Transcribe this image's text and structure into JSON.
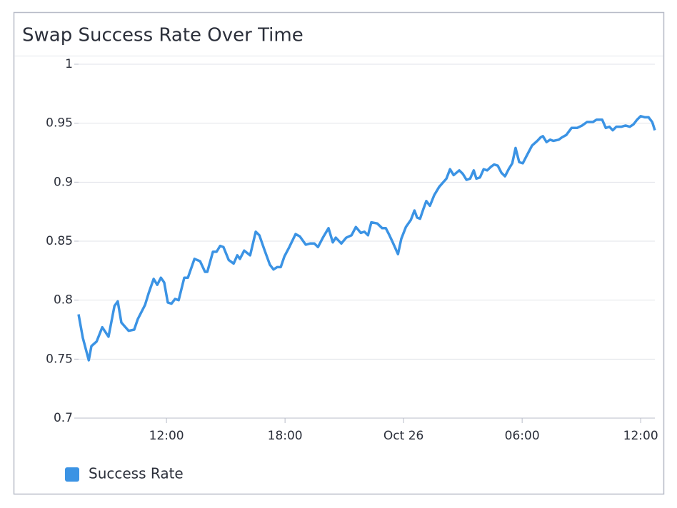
{
  "chart_data": {
    "type": "line",
    "title": "Swap Success Rate Over Time",
    "x": [
      "Oct 25 07:33",
      "Oct 25 07:46",
      "Oct 25 08:04",
      "Oct 25 08:12",
      "Oct 25 08:28",
      "Oct 25 08:45",
      "Oct 25 09:04",
      "Oct 25 09:22",
      "Oct 25 09:32",
      "Oct 25 09:43",
      "Oct 25 10:05",
      "Oct 25 10:22",
      "Oct 25 10:33",
      "Oct 25 10:55",
      "Oct 25 11:06",
      "Oct 25 11:21",
      "Oct 25 11:32",
      "Oct 25 11:43",
      "Oct 25 11:53",
      "Oct 25 12:04",
      "Oct 25 12:15",
      "Oct 25 12:26",
      "Oct 25 12:37",
      "Oct 25 12:54",
      "Oct 25 13:05",
      "Oct 25 13:25",
      "Oct 25 13:42",
      "Oct 25 13:57",
      "Oct 25 14:04",
      "Oct 25 14:21",
      "Oct 25 14:32",
      "Oct 25 14:43",
      "Oct 25 14:53",
      "Oct 25 15:09",
      "Oct 25 15:24",
      "Oct 25 15:35",
      "Oct 25 15:43",
      "Oct 25 15:56",
      "Oct 25 16:14",
      "Oct 25 16:31",
      "Oct 25 16:42",
      "Oct 25 16:57",
      "Oct 25 17:14",
      "Oct 25 17:25",
      "Oct 25 17:36",
      "Oct 25 17:47",
      "Oct 25 17:58",
      "Oct 25 18:13",
      "Oct 25 18:32",
      "Oct 25 18:45",
      "Oct 25 19:03",
      "Oct 25 19:16",
      "Oct 25 19:29",
      "Oct 25 19:40",
      "Oct 25 19:55",
      "Oct 25 20:12",
      "Oct 25 20:25",
      "Oct 25 20:34",
      "Oct 25 20:51",
      "Oct 25 21:06",
      "Oct 25 21:22",
      "Oct 25 21:35",
      "Oct 25 21:50",
      "Oct 25 22:01",
      "Oct 25 22:12",
      "Oct 25 22:22",
      "Oct 25 22:40",
      "Oct 25 22:55",
      "Oct 25 23:06",
      "Oct 25 23:17",
      "Oct 25 23:27",
      "Oct 25 23:43",
      "Oct 25 23:53",
      "Oct 26 00:07",
      "Oct 26 00:22",
      "Oct 26 00:33",
      "Oct 26 00:41",
      "Oct 26 00:50",
      "Oct 26 01:01",
      "Oct 26 01:09",
      "Oct 26 01:20",
      "Oct 26 01:33",
      "Oct 26 01:48",
      "Oct 26 02:10",
      "Oct 26 02:21",
      "Oct 26 02:32",
      "Oct 26 02:49",
      "Oct 26 03:00",
      "Oct 26 03:11",
      "Oct 26 03:22",
      "Oct 26 03:33",
      "Oct 26 03:41",
      "Oct 26 03:52",
      "Oct 26 04:03",
      "Oct 26 04:14",
      "Oct 26 04:25",
      "Oct 26 04:35",
      "Oct 26 04:46",
      "Oct 26 04:57",
      "Oct 26 05:08",
      "Oct 26 05:19",
      "Oct 26 05:30",
      "Oct 26 05:40",
      "Oct 26 05:51",
      "Oct 26 06:02",
      "Oct 26 06:13",
      "Oct 26 06:30",
      "Oct 26 06:46",
      "Oct 26 06:56",
      "Oct 26 07:03",
      "Oct 26 07:14",
      "Oct 26 07:25",
      "Oct 26 07:35",
      "Oct 26 07:51",
      "Oct 26 08:01",
      "Oct 26 08:14",
      "Oct 26 08:30",
      "Oct 26 08:47",
      "Oct 26 09:02",
      "Oct 26 09:17",
      "Oct 26 09:35",
      "Oct 26 09:46",
      "Oct 26 10:03",
      "Oct 26 10:14",
      "Oct 26 10:25",
      "Oct 26 10:35",
      "Oct 26 10:46",
      "Oct 26 11:01",
      "Oct 26 11:14",
      "Oct 26 11:27",
      "Oct 26 11:38",
      "Oct 26 11:49",
      "Oct 26 12:00",
      "Oct 26 12:13",
      "Oct 26 12:24",
      "Oct 26 12:35",
      "Oct 26 12:43"
    ],
    "series": [
      {
        "name": "Success Rate",
        "color": "#3b93e4",
        "values": [
          0.788,
          0.768,
          0.749,
          0.761,
          0.765,
          0.777,
          0.769,
          0.795,
          0.799,
          0.781,
          0.774,
          0.775,
          0.784,
          0.796,
          0.806,
          0.818,
          0.813,
          0.819,
          0.815,
          0.798,
          0.797,
          0.801,
          0.8,
          0.819,
          0.819,
          0.835,
          0.833,
          0.824,
          0.824,
          0.841,
          0.841,
          0.846,
          0.845,
          0.834,
          0.831,
          0.838,
          0.835,
          0.842,
          0.838,
          0.858,
          0.855,
          0.843,
          0.83,
          0.826,
          0.828,
          0.828,
          0.837,
          0.845,
          0.856,
          0.854,
          0.847,
          0.848,
          0.848,
          0.845,
          0.853,
          0.861,
          0.849,
          0.853,
          0.848,
          0.853,
          0.855,
          0.862,
          0.857,
          0.858,
          0.855,
          0.866,
          0.865,
          0.861,
          0.861,
          0.855,
          0.849,
          0.839,
          0.852,
          0.862,
          0.868,
          0.876,
          0.87,
          0.869,
          0.878,
          0.884,
          0.88,
          0.889,
          0.896,
          0.903,
          0.911,
          0.906,
          0.91,
          0.907,
          0.902,
          0.903,
          0.91,
          0.903,
          0.904,
          0.911,
          0.91,
          0.913,
          0.915,
          0.914,
          0.908,
          0.905,
          0.911,
          0.916,
          0.929,
          0.917,
          0.916,
          0.922,
          0.931,
          0.935,
          0.938,
          0.939,
          0.934,
          0.936,
          0.935,
          0.936,
          0.938,
          0.94,
          0.946,
          0.946,
          0.948,
          0.951,
          0.951,
          0.953,
          0.953,
          0.946,
          0.947,
          0.944,
          0.947,
          0.947,
          0.948,
          0.947,
          0.949,
          0.953,
          0.956,
          0.955,
          0.955,
          0.951,
          0.944
        ]
      }
    ],
    "xlim": [
      "Oct 25 07:33",
      "Oct 26 12:43"
    ],
    "xticks": [
      {
        "value": "Oct 25 12:00",
        "label": "12:00"
      },
      {
        "value": "Oct 25 18:00",
        "label": "18:00"
      },
      {
        "value": "Oct 26 00:00",
        "label": "Oct 26"
      },
      {
        "value": "Oct 26 06:00",
        "label": "06:00"
      },
      {
        "value": "Oct 26 12:00",
        "label": "12:00"
      }
    ],
    "ylim": [
      0.7,
      1
    ],
    "yticks": [
      0.7,
      0.75,
      0.8,
      0.85,
      0.9,
      0.95,
      1
    ],
    "grid": true,
    "legend": "bottom-left"
  }
}
